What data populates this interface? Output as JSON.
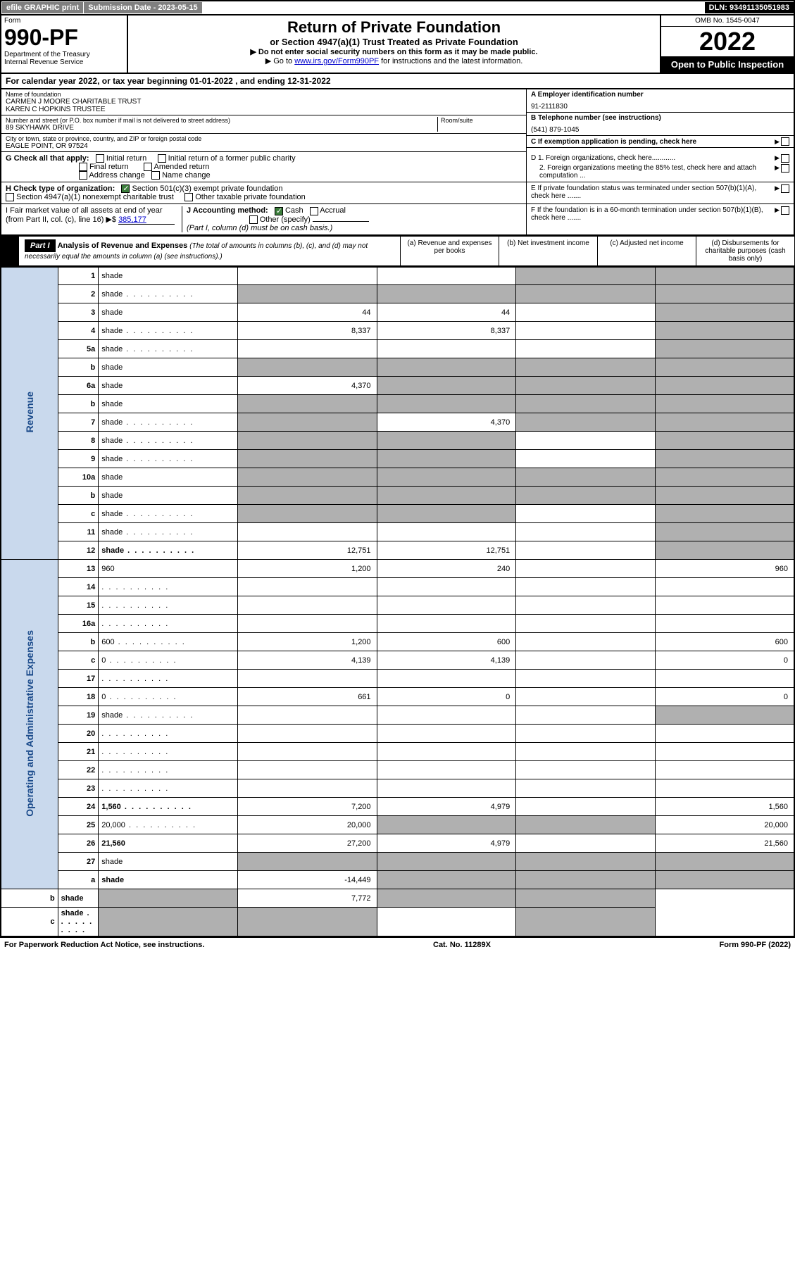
{
  "topbar": {
    "efile": "efile GRAPHIC print",
    "submission": "Submission Date - 2023-05-15",
    "dln": "DLN: 93491135051983"
  },
  "header": {
    "form_label": "Form",
    "form_num": "990-PF",
    "dept": "Department of the Treasury\nInternal Revenue Service",
    "title": "Return of Private Foundation",
    "sub": "or Section 4947(a)(1) Trust Treated as Private Foundation",
    "note1": "▶ Do not enter social security numbers on this form as it may be made public.",
    "note2_pre": "▶ Go to ",
    "note2_link": "www.irs.gov/Form990PF",
    "note2_post": " for instructions and the latest information.",
    "omb": "OMB No. 1545-0047",
    "year": "2022",
    "open": "Open to Public Inspection"
  },
  "cal_year": "For calendar year 2022, or tax year beginning 01-01-2022              , and ending 12-31-2022",
  "foundation": {
    "name_lbl": "Name of foundation",
    "name": "CARMEN J MOORE CHARITABLE TRUST\nKAREN C HOPKINS TRUSTEE",
    "addr_lbl": "Number and street (or P.O. box number if mail is not delivered to street address)",
    "addr": "89 SKYHAWK DRIVE",
    "room_lbl": "Room/suite",
    "city_lbl": "City or town, state or province, country, and ZIP or foreign postal code",
    "city": "EAGLE POINT, OR  97524",
    "ein_lbl": "A Employer identification number",
    "ein": "91-2111830",
    "phone_lbl": "B Telephone number (see instructions)",
    "phone": "(541) 879-1045",
    "c_lbl": "C If exemption application is pending, check here",
    "d1": "D 1. Foreign organizations, check here............",
    "d2": "2. Foreign organizations meeting the 85% test, check here and attach computation ...",
    "e_lbl": "E  If private foundation status was terminated under section 507(b)(1)(A), check here .......",
    "f_lbl": "F  If the foundation is in a 60-month termination under section 507(b)(1)(B), check here .......",
    "g_lbl": "G Check all that apply:",
    "g_initial": "Initial return",
    "g_initial_former": "Initial return of a former public charity",
    "g_final": "Final return",
    "g_amended": "Amended return",
    "g_address": "Address change",
    "g_name": "Name change",
    "h_lbl": "H Check type of organization:",
    "h_501": "Section 501(c)(3) exempt private foundation",
    "h_4947": "Section 4947(a)(1) nonexempt charitable trust",
    "h_other": "Other taxable private foundation",
    "i_lbl": "I Fair market value of all assets at end of year (from Part II, col. (c), line 16) ▶$ ",
    "i_val": "385,177",
    "j_lbl": "J Accounting method:",
    "j_cash": "Cash",
    "j_accrual": "Accrual",
    "j_other": "Other (specify)",
    "j_note": "(Part I, column (d) must be on cash basis.)"
  },
  "part1": {
    "label": "Part I",
    "title": "Analysis of Revenue and Expenses",
    "title_note": "(The total of amounts in columns (b), (c), and (d) may not necessarily equal the amounts in column (a) (see instructions).)",
    "col_a": "(a)    Revenue and expenses per books",
    "col_b": "(b)    Net investment income",
    "col_c": "(c)    Adjusted net income",
    "col_d": "(d)    Disbursements for charitable purposes (cash basis only)"
  },
  "side_labels": {
    "revenue": "Revenue",
    "expenses": "Operating and Administrative Expenses"
  },
  "rows": [
    {
      "n": "1",
      "d": "shade",
      "a": "",
      "b": "",
      "c": "shade"
    },
    {
      "n": "2",
      "d": "shade",
      "a": "shade",
      "b": "shade",
      "c": "shade",
      "dots": true
    },
    {
      "n": "3",
      "d": "shade",
      "a": "44",
      "b": "44",
      "c": ""
    },
    {
      "n": "4",
      "d": "shade",
      "a": "8,337",
      "b": "8,337",
      "c": "",
      "dots": true
    },
    {
      "n": "5a",
      "d": "shade",
      "a": "",
      "b": "",
      "c": "",
      "dots": true
    },
    {
      "n": "b",
      "d": "shade",
      "a": "shade",
      "b": "shade",
      "c": "shade"
    },
    {
      "n": "6a",
      "d": "shade",
      "a": "4,370",
      "b": "shade",
      "c": "shade"
    },
    {
      "n": "b",
      "d": "shade",
      "a": "shade",
      "b": "shade",
      "c": "shade"
    },
    {
      "n": "7",
      "d": "shade",
      "a": "shade",
      "b": "4,370",
      "c": "shade",
      "dots": true
    },
    {
      "n": "8",
      "d": "shade",
      "a": "shade",
      "b": "shade",
      "c": "",
      "dots": true
    },
    {
      "n": "9",
      "d": "shade",
      "a": "shade",
      "b": "shade",
      "c": "",
      "dots": true
    },
    {
      "n": "10a",
      "d": "shade",
      "a": "shade",
      "b": "shade",
      "c": "shade"
    },
    {
      "n": "b",
      "d": "shade",
      "a": "shade",
      "b": "shade",
      "c": "shade"
    },
    {
      "n": "c",
      "d": "shade",
      "a": "shade",
      "b": "shade",
      "c": "",
      "dots": true
    },
    {
      "n": "11",
      "d": "shade",
      "a": "",
      "b": "",
      "c": "",
      "dots": true
    },
    {
      "n": "12",
      "d": "shade",
      "a": "12,751",
      "b": "12,751",
      "c": "",
      "bold": true,
      "dots": true
    },
    {
      "n": "13",
      "d": "960",
      "a": "1,200",
      "b": "240",
      "c": ""
    },
    {
      "n": "14",
      "d": "",
      "a": "",
      "b": "",
      "c": "",
      "dots": true
    },
    {
      "n": "15",
      "d": "",
      "a": "",
      "b": "",
      "c": "",
      "dots": true
    },
    {
      "n": "16a",
      "d": "",
      "a": "",
      "b": "",
      "c": "",
      "dots": true
    },
    {
      "n": "b",
      "d": "600",
      "a": "1,200",
      "b": "600",
      "c": "",
      "dots": true
    },
    {
      "n": "c",
      "d": "0",
      "a": "4,139",
      "b": "4,139",
      "c": "",
      "dots": true
    },
    {
      "n": "17",
      "d": "",
      "a": "",
      "b": "",
      "c": "",
      "dots": true
    },
    {
      "n": "18",
      "d": "0",
      "a": "661",
      "b": "0",
      "c": "",
      "dots": true
    },
    {
      "n": "19",
      "d": "shade",
      "a": "",
      "b": "",
      "c": "",
      "dots": true
    },
    {
      "n": "20",
      "d": "",
      "a": "",
      "b": "",
      "c": "",
      "dots": true
    },
    {
      "n": "21",
      "d": "",
      "a": "",
      "b": "",
      "c": "",
      "dots": true
    },
    {
      "n": "22",
      "d": "",
      "a": "",
      "b": "",
      "c": "",
      "dots": true
    },
    {
      "n": "23",
      "d": "",
      "a": "",
      "b": "",
      "c": "",
      "dots": true
    },
    {
      "n": "24",
      "d": "1,560",
      "a": "7,200",
      "b": "4,979",
      "c": "",
      "bold": true,
      "dots": true
    },
    {
      "n": "25",
      "d": "20,000",
      "a": "20,000",
      "b": "shade",
      "c": "shade",
      "dots": true
    },
    {
      "n": "26",
      "d": "21,560",
      "a": "27,200",
      "b": "4,979",
      "c": "",
      "bold": true
    },
    {
      "n": "27",
      "d": "shade",
      "a": "shade",
      "b": "shade",
      "c": "shade"
    },
    {
      "n": "a",
      "d": "shade",
      "a": "-14,449",
      "b": "shade",
      "c": "shade",
      "bold": true
    },
    {
      "n": "b",
      "d": "shade",
      "a": "shade",
      "b": "7,772",
      "c": "shade",
      "bold": true
    },
    {
      "n": "c",
      "d": "shade",
      "a": "shade",
      "b": "shade",
      "c": "",
      "bold": true,
      "dots": true
    }
  ],
  "footer": {
    "left": "For Paperwork Reduction Act Notice, see instructions.",
    "mid": "Cat. No. 11289X",
    "right": "Form 990-PF (2022)"
  }
}
